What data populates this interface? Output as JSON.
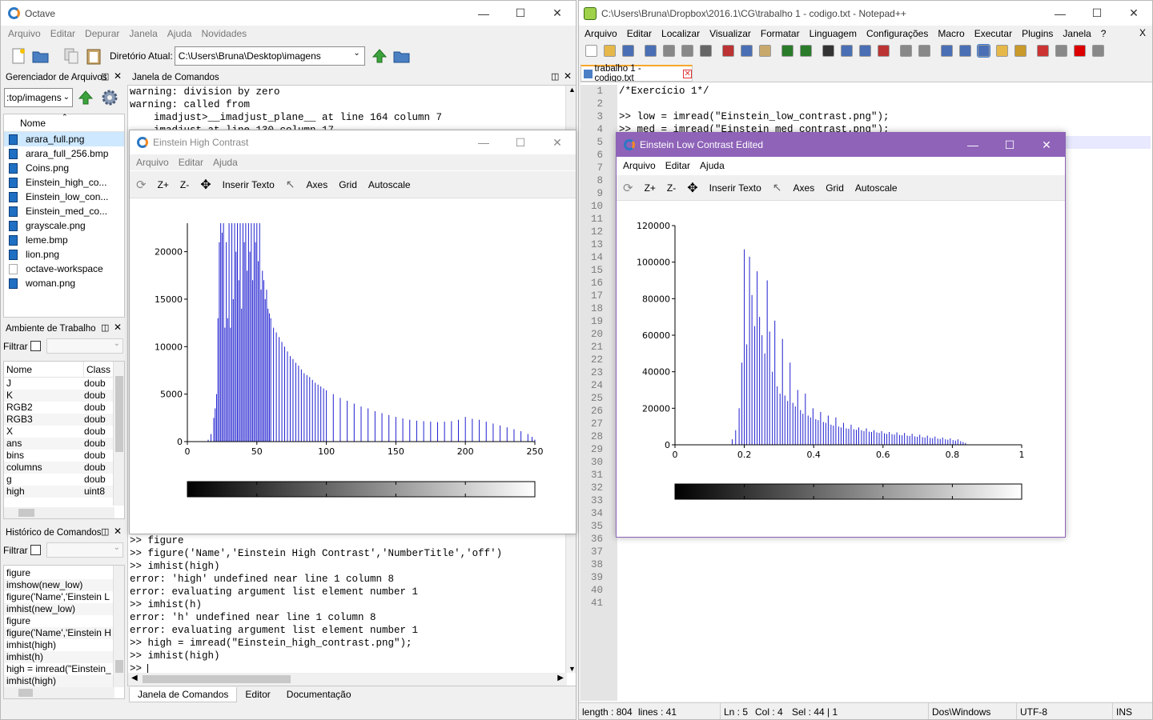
{
  "octave": {
    "title": "Octave",
    "menu": [
      "Arquivo",
      "Editar",
      "Depurar",
      "Janela",
      "Ajuda",
      "Novidades"
    ],
    "dir_label": "Diretório Atual:",
    "dir_value": "C:\\Users\\Bruna\\Desktop\\imagens",
    "file_manager": {
      "title": "Gerenciador de Arquivos",
      "path": ":top/imagens",
      "col_name": "Nome",
      "files": [
        "arara_full.png",
        "arara_full_256.bmp",
        "Coins.png",
        "Einstein_high_co...",
        "Einstein_low_con...",
        "Einstein_med_co...",
        "grayscale.png",
        "leme.bmp",
        "lion.png",
        "octave-workspace",
        "woman.png"
      ]
    },
    "workspace": {
      "title": "Ambiente de Trabalho",
      "filter_label": "Filtrar",
      "col_name": "Nome",
      "col_class": "Class",
      "rows": [
        {
          "name": "J",
          "cls": "doub"
        },
        {
          "name": "K",
          "cls": "doub"
        },
        {
          "name": "RGB2",
          "cls": "doub"
        },
        {
          "name": "RGB3",
          "cls": "doub"
        },
        {
          "name": "X",
          "cls": "doub"
        },
        {
          "name": "ans",
          "cls": "doub"
        },
        {
          "name": "bins",
          "cls": "doub"
        },
        {
          "name": "columns",
          "cls": "doub"
        },
        {
          "name": "g",
          "cls": "doub"
        },
        {
          "name": "high",
          "cls": "uint8"
        }
      ]
    },
    "history": {
      "title": "Histórico de Comandos",
      "filter_label": "Filtrar",
      "items": [
        "figure",
        "imshow(new_low)",
        "figure('Name','Einstein L",
        "imhist(new_low)",
        "figure",
        "figure('Name','Einstein H",
        "imhist(high)",
        "imhist(h)",
        "high = imread(\"Einstein_",
        "imhist(high)"
      ]
    },
    "command_window": {
      "title": "Janela de Comandos",
      "top_lines": [
        "warning: division by zero",
        "warning: called from",
        "    imadjust>__imadjust_plane__ at line 164 column 7",
        "    imadjust at line 130 column 17"
      ],
      "bottom_lines": [
        ">> figure",
        ">> figure('Name','Einstein High Contrast','NumberTitle','off')",
        ">> imhist(high)",
        "error: 'high' undefined near line 1 column 8",
        "error: evaluating argument list element number 1",
        ">> imhist(h)",
        "error: 'h' undefined near line 1 column 8",
        "error: evaluating argument list element number 1",
        ">> high = imread(\"Einstein_high_contrast.png\");",
        ">> imhist(high)",
        ">> "
      ],
      "tabs": [
        "Janela de Comandos",
        "Editor",
        "Documentação"
      ]
    }
  },
  "fig_high": {
    "title": "Einstein High Contrast",
    "menu": [
      "Arquivo",
      "Editar",
      "Ajuda"
    ],
    "tools": [
      "Z+",
      "Z-",
      "Inserir Texto",
      "Axes",
      "Grid",
      "Autoscale"
    ]
  },
  "fig_low": {
    "title": "Einstein Low Contrast Edited",
    "menu": [
      "Arquivo",
      "Editar",
      "Ajuda"
    ],
    "tools": [
      "Z+",
      "Z-",
      "Inserir Texto",
      "Axes",
      "Grid",
      "Autoscale"
    ]
  },
  "notepad": {
    "title": "C:\\Users\\Bruna\\Dropbox\\2016.1\\CG\\trabalho 1 - codigo.txt - Notepad++",
    "menu": [
      "Arquivo",
      "Editar",
      "Localizar",
      "Visualizar",
      "Formatar",
      "Linguagem",
      "Configurações",
      "Macro",
      "Executar",
      "Plugins",
      "Janela",
      "?"
    ],
    "close_x": "X",
    "tab": "trabalho 1 - codigo.txt",
    "code_lines": [
      "/*Exercício 1*/",
      "",
      ">> low = imread(\"Einstein_low_contrast.png\");",
      ">> med = imread(\"Einstein_med_contrast.png\");"
    ],
    "line_count": 41,
    "status": {
      "length": "length : 804",
      "lines": "lines : 41",
      "ln": "Ln : 5",
      "col": "Col : 4",
      "sel": "Sel : 44 | 1",
      "eol": "Dos\\Windows",
      "enc": "UTF-8",
      "mode": "INS"
    }
  },
  "chart_data": [
    {
      "type": "bar",
      "title": "",
      "xlim": [
        0,
        250
      ],
      "ylim": [
        0,
        23000
      ],
      "xticks": [
        0,
        50,
        100,
        150,
        200,
        250
      ],
      "yticks": [
        0,
        5000,
        10000,
        15000,
        20000
      ],
      "colorbar": "grayscale 0-255",
      "color": "#1f1fd0",
      "x": [
        15,
        17,
        19,
        20,
        21,
        22,
        23,
        24,
        25,
        26,
        27,
        28,
        29,
        30,
        31,
        32,
        33,
        34,
        35,
        36,
        37,
        38,
        39,
        40,
        41,
        42,
        43,
        44,
        45,
        46,
        47,
        48,
        49,
        50,
        51,
        52,
        53,
        54,
        55,
        56,
        57,
        58,
        59,
        60,
        62,
        64,
        66,
        68,
        70,
        72,
        74,
        76,
        78,
        80,
        82,
        84,
        86,
        88,
        90,
        92,
        94,
        96,
        98,
        100,
        105,
        110,
        115,
        120,
        125,
        130,
        135,
        140,
        145,
        150,
        155,
        160,
        165,
        170,
        175,
        180,
        185,
        190,
        195,
        200,
        205,
        210,
        215,
        220,
        225,
        230,
        235,
        240,
        245,
        248,
        250
      ],
      "values": [
        200,
        800,
        2500,
        3500,
        5000,
        13000,
        21000,
        23000,
        22000,
        23000,
        12000,
        21000,
        13000,
        23000,
        12000,
        23000,
        15000,
        23000,
        20000,
        23000,
        17000,
        23000,
        14000,
        23000,
        21000,
        23000,
        18000,
        23000,
        20000,
        23000,
        17000,
        23000,
        21000,
        23000,
        19000,
        23000,
        16000,
        18000,
        17000,
        15000,
        16000,
        14000,
        13500,
        13000,
        12000,
        11500,
        11000,
        10500,
        10000,
        9500,
        9000,
        8700,
        8300,
        8000,
        7600,
        7200,
        7000,
        6800,
        6500,
        6200,
        6000,
        5800,
        5600,
        5400,
        5000,
        4600,
        4300,
        4000,
        3700,
        3500,
        3200,
        3000,
        2800,
        2600,
        2450,
        2300,
        2200,
        2150,
        2100,
        2050,
        2100,
        2150,
        2300,
        2600,
        2400,
        2300,
        2100,
        1900,
        1700,
        1500,
        1300,
        1100,
        800,
        500,
        200
      ]
    },
    {
      "type": "bar",
      "title": "",
      "xlim": [
        0,
        1
      ],
      "ylim": [
        0,
        120000
      ],
      "xticks": [
        0,
        0.2,
        0.4,
        0.6,
        0.8,
        1
      ],
      "yticks": [
        0,
        20000,
        40000,
        60000,
        80000,
        100000,
        120000
      ],
      "colorbar": "grayscale 0-1",
      "color": "#1f1fd0",
      "x": [
        0.165,
        0.175,
        0.185,
        0.193,
        0.2,
        0.207,
        0.215,
        0.222,
        0.23,
        0.237,
        0.244,
        0.251,
        0.259,
        0.266,
        0.273,
        0.281,
        0.288,
        0.295,
        0.303,
        0.31,
        0.317,
        0.325,
        0.332,
        0.34,
        0.347,
        0.354,
        0.362,
        0.369,
        0.376,
        0.384,
        0.391,
        0.398,
        0.406,
        0.413,
        0.42,
        0.428,
        0.435,
        0.442,
        0.45,
        0.457,
        0.464,
        0.472,
        0.479,
        0.486,
        0.494,
        0.501,
        0.508,
        0.516,
        0.523,
        0.53,
        0.538,
        0.545,
        0.552,
        0.56,
        0.567,
        0.574,
        0.582,
        0.589,
        0.596,
        0.604,
        0.611,
        0.618,
        0.626,
        0.633,
        0.64,
        0.648,
        0.655,
        0.662,
        0.67,
        0.677,
        0.684,
        0.692,
        0.699,
        0.706,
        0.714,
        0.721,
        0.728,
        0.736,
        0.743,
        0.75,
        0.758,
        0.765,
        0.772,
        0.78,
        0.787,
        0.794,
        0.802,
        0.809,
        0.816,
        0.824,
        0.831,
        0.838
      ],
      "values": [
        3000,
        8000,
        20000,
        45000,
        107000,
        55000,
        103000,
        82000,
        65000,
        95000,
        70000,
        60000,
        50000,
        90000,
        62000,
        40000,
        68000,
        32000,
        28000,
        58000,
        27000,
        24000,
        45000,
        23000,
        21000,
        30000,
        19000,
        17000,
        28000,
        16000,
        15000,
        20000,
        14000,
        13500,
        18000,
        12500,
        12000,
        16000,
        11000,
        10500,
        15000,
        10000,
        9500,
        12000,
        9000,
        8800,
        11000,
        8500,
        8200,
        9500,
        8000,
        7500,
        9000,
        7200,
        7000,
        8000,
        6800,
        6500,
        7500,
        6300,
        6000,
        7000,
        5800,
        5600,
        6800,
        5400,
        5200,
        6500,
        5000,
        4800,
        6000,
        4600,
        4400,
        5500,
        4200,
        4000,
        5000,
        3800,
        3600,
        4500,
        3400,
        3200,
        4000,
        3000,
        2800,
        3500,
        2600,
        2300,
        3000,
        2000,
        1500,
        1000
      ]
    }
  ]
}
